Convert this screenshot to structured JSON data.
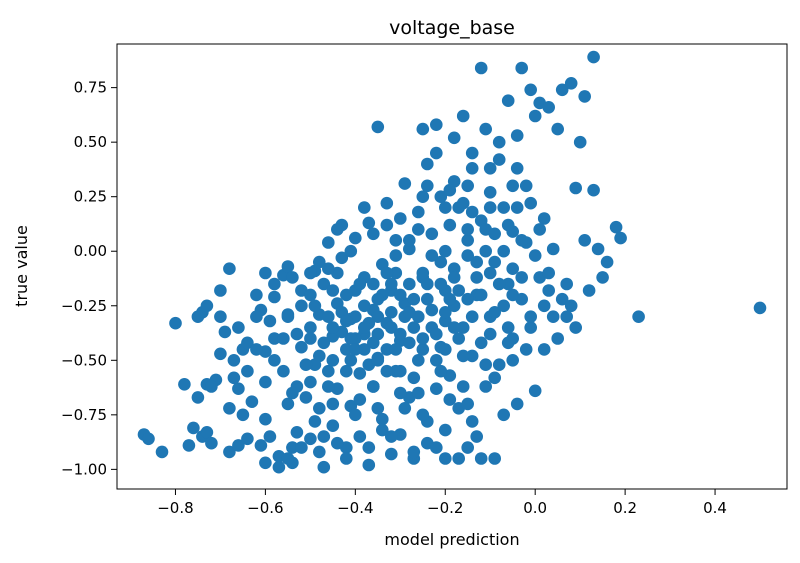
{
  "chart_data": {
    "type": "scatter",
    "title": "voltage_base",
    "xlabel": "model prediction",
    "ylabel": "true value",
    "xlim": [
      -0.93,
      0.56
    ],
    "ylim": [
      -1.09,
      0.95
    ],
    "xticks": [
      -0.8,
      -0.6,
      -0.4,
      -0.2,
      0.0,
      0.2,
      0.4
    ],
    "xtick_labels": [
      "−0.8",
      "−0.6",
      "−0.4",
      "−0.2",
      "0.0",
      "0.2",
      "0.4"
    ],
    "yticks": [
      -1.0,
      -0.75,
      -0.5,
      -0.25,
      0.0,
      0.25,
      0.5,
      0.75
    ],
    "ytick_labels": [
      "−1.00",
      "−0.75",
      "−0.50",
      "−0.25",
      "0.00",
      "0.25",
      "0.50",
      "0.75"
    ],
    "grid": false,
    "color": "#1f77b4",
    "points": [
      [
        -0.87,
        -0.84
      ],
      [
        -0.86,
        -0.86
      ],
      [
        -0.83,
        -0.92
      ],
      [
        -0.8,
        -0.33
      ],
      [
        -0.78,
        -0.61
      ],
      [
        -0.77,
        -0.89
      ],
      [
        -0.76,
        -0.81
      ],
      [
        -0.75,
        -0.67
      ],
      [
        -0.74,
        -0.85
      ],
      [
        -0.73,
        -0.83
      ],
      [
        -0.73,
        -0.61
      ],
      [
        -0.72,
        -0.88
      ],
      [
        -0.74,
        -0.28
      ],
      [
        -0.73,
        -0.25
      ],
      [
        -0.71,
        -0.59
      ],
      [
        -0.7,
        -0.18
      ],
      [
        -0.7,
        -0.3
      ],
      [
        -0.69,
        -0.37
      ],
      [
        -0.68,
        -0.92
      ],
      [
        -0.68,
        -0.08
      ],
      [
        -0.67,
        -0.58
      ],
      [
        -0.67,
        -0.5
      ],
      [
        -0.66,
        -0.63
      ],
      [
        -0.66,
        -0.89
      ],
      [
        -0.65,
        -0.45
      ],
      [
        -0.64,
        -0.86
      ],
      [
        -0.64,
        -0.42
      ],
      [
        -0.63,
        -0.69
      ],
      [
        -0.62,
        -0.2
      ],
      [
        -0.61,
        -0.27
      ],
      [
        -0.61,
        -0.89
      ],
      [
        -0.6,
        -0.77
      ],
      [
        -0.6,
        -0.46
      ],
      [
        -0.59,
        -0.32
      ],
      [
        -0.58,
        -0.21
      ],
      [
        -0.58,
        -0.4
      ],
      [
        -0.57,
        -0.94
      ],
      [
        -0.57,
        -0.99
      ],
      [
        -0.56,
        -0.55
      ],
      [
        -0.56,
        -0.11
      ],
      [
        -0.55,
        -0.07
      ],
      [
        -0.55,
        -0.29
      ],
      [
        -0.54,
        -0.9
      ],
      [
        -0.54,
        -0.97
      ],
      [
        -0.53,
        -0.83
      ],
      [
        -0.53,
        -0.62
      ],
      [
        -0.52,
        -0.44
      ],
      [
        -0.52,
        -0.18
      ],
      [
        -0.51,
        -0.67
      ],
      [
        -0.5,
        -0.35
      ],
      [
        -0.5,
        -0.86
      ],
      [
        -0.49,
        -0.09
      ],
      [
        -0.49,
        -0.52
      ],
      [
        -0.48,
        -0.72
      ],
      [
        -0.48,
        -0.29
      ],
      [
        -0.47,
        -0.99
      ],
      [
        -0.47,
        -0.15
      ],
      [
        -0.46,
        0.04
      ],
      [
        -0.46,
        -0.55
      ],
      [
        -0.45,
        -0.39
      ],
      [
        -0.45,
        -0.8
      ],
      [
        -0.44,
        -0.24
      ],
      [
        -0.44,
        -0.63
      ],
      [
        -0.43,
        -0.03
      ],
      [
        -0.43,
        0.12
      ],
      [
        -0.42,
        -0.45
      ],
      [
        -0.42,
        -0.9
      ],
      [
        -0.41,
        -0.31
      ],
      [
        -0.41,
        -0.71
      ],
      [
        -0.4,
        -0.18
      ],
      [
        -0.4,
        0.06
      ],
      [
        -0.39,
        -0.56
      ],
      [
        -0.39,
        -0.85
      ],
      [
        -0.38,
        -0.38
      ],
      [
        -0.38,
        -0.12
      ],
      [
        -0.37,
        -0.98
      ],
      [
        -0.37,
        0.13
      ],
      [
        -0.36,
        -0.62
      ],
      [
        -0.36,
        -0.27
      ],
      [
        -0.35,
        0.57
      ],
      [
        -0.35,
        -0.49
      ],
      [
        -0.34,
        -0.06
      ],
      [
        -0.34,
        -0.77
      ],
      [
        -0.33,
        0.22
      ],
      [
        -0.33,
        -0.33
      ],
      [
        -0.32,
        -0.93
      ],
      [
        -0.32,
        -0.18
      ],
      [
        -0.31,
        -0.55
      ],
      [
        -0.31,
        0.05
      ],
      [
        -0.3,
        -0.41
      ],
      [
        -0.3,
        -0.84
      ],
      [
        -0.29,
        0.31
      ],
      [
        -0.29,
        -0.24
      ],
      [
        -0.28,
        -0.67
      ],
      [
        -0.28,
        0.01
      ],
      [
        -0.27,
        -0.95
      ],
      [
        -0.27,
        -0.35
      ],
      [
        -0.26,
        0.18
      ],
      [
        -0.26,
        -0.5
      ],
      [
        -0.25,
        0.56
      ],
      [
        -0.25,
        -0.12
      ],
      [
        -0.24,
        -0.78
      ],
      [
        -0.24,
        0.4
      ],
      [
        -0.23,
        -0.27
      ],
      [
        -0.23,
        0.08
      ],
      [
        -0.22,
        -0.63
      ],
      [
        -0.22,
        0.58
      ],
      [
        -0.21,
        -0.44
      ],
      [
        -0.21,
        0.25
      ],
      [
        -0.2,
        -0.95
      ],
      [
        -0.2,
        -0.18
      ],
      [
        -0.19,
        0.12
      ],
      [
        -0.19,
        -0.57
      ],
      [
        -0.18,
        0.32
      ],
      [
        -0.18,
        -0.08
      ],
      [
        -0.17,
        -0.72
      ],
      [
        -0.17,
        0.2
      ],
      [
        -0.16,
        -0.35
      ],
      [
        -0.16,
        0.62
      ],
      [
        -0.15,
        -0.9
      ],
      [
        -0.15,
        0.05
      ],
      [
        -0.14,
        -0.48
      ],
      [
        -0.14,
        0.38
      ],
      [
        -0.13,
        -0.2
      ],
      [
        -0.13,
        -0.85
      ],
      [
        -0.12,
        0.84
      ],
      [
        -0.12,
        0.14
      ],
      [
        -0.11,
        -0.62
      ],
      [
        -0.11,
        0.56
      ],
      [
        -0.1,
        -0.3
      ],
      [
        -0.1,
        0.27
      ],
      [
        -0.09,
        -0.95
      ],
      [
        -0.09,
        -0.05
      ],
      [
        -0.08,
        0.5
      ],
      [
        -0.08,
        -0.52
      ],
      [
        -0.07,
        0.2
      ],
      [
        -0.07,
        -0.75
      ],
      [
        -0.06,
        0.69
      ],
      [
        -0.06,
        -0.15
      ],
      [
        -0.05,
        0.09
      ],
      [
        -0.05,
        -0.4
      ],
      [
        -0.04,
        0.53
      ],
      [
        -0.04,
        -0.7
      ],
      [
        -0.03,
        0.84
      ],
      [
        -0.03,
        -0.22
      ],
      [
        -0.02,
        0.3
      ],
      [
        -0.02,
        0.04
      ],
      [
        -0.01,
        0.74
      ],
      [
        -0.01,
        -0.35
      ],
      [
        0.0,
        0.62
      ],
      [
        0.0,
        -0.64
      ],
      [
        0.01,
        0.68
      ],
      [
        0.01,
        -0.12
      ],
      [
        0.02,
        0.15
      ],
      [
        0.02,
        -0.45
      ],
      [
        0.03,
        0.66
      ],
      [
        0.03,
        -0.18
      ],
      [
        0.04,
        0.01
      ],
      [
        0.05,
        0.56
      ],
      [
        0.05,
        -0.4
      ],
      [
        0.06,
        0.74
      ],
      [
        0.07,
        -0.3
      ],
      [
        0.08,
        0.77
      ],
      [
        0.09,
        0.29
      ],
      [
        0.09,
        -0.35
      ],
      [
        0.1,
        0.5
      ],
      [
        0.11,
        0.71
      ],
      [
        0.11,
        0.05
      ],
      [
        0.12,
        -0.18
      ],
      [
        0.13,
        0.89
      ],
      [
        0.13,
        0.28
      ],
      [
        0.14,
        0.01
      ],
      [
        0.15,
        -0.12
      ],
      [
        0.16,
        -0.05
      ],
      [
        0.18,
        0.11
      ],
      [
        0.19,
        0.06
      ],
      [
        0.23,
        -0.3
      ],
      [
        0.5,
        -0.26
      ],
      [
        -0.6,
        -0.6
      ],
      [
        -0.55,
        -0.7
      ],
      [
        -0.5,
        -0.6
      ],
      [
        -0.45,
        -0.5
      ],
      [
        -0.4,
        -0.4
      ],
      [
        -0.35,
        -0.3
      ],
      [
        -0.3,
        -0.2
      ],
      [
        -0.25,
        -0.1
      ],
      [
        -0.2,
        0.0
      ],
      [
        -0.15,
        0.1
      ],
      [
        -0.1,
        0.2
      ],
      [
        -0.05,
        0.3
      ],
      [
        -0.48,
        -0.48
      ],
      [
        -0.43,
        -0.37
      ],
      [
        -0.38,
        -0.25
      ],
      [
        -0.33,
        -0.45
      ],
      [
        -0.28,
        -0.15
      ],
      [
        -0.23,
        -0.35
      ],
      [
        -0.18,
        -0.25
      ],
      [
        -0.13,
        -0.05
      ],
      [
        -0.08,
        -0.15
      ],
      [
        -0.03,
        0.05
      ],
      [
        0.02,
        -0.25
      ],
      [
        0.07,
        -0.15
      ],
      [
        -0.62,
        -0.3
      ],
      [
        -0.58,
        -0.5
      ],
      [
        -0.52,
        -0.25
      ],
      [
        -0.47,
        -0.42
      ],
      [
        -0.42,
        -0.2
      ],
      [
        -0.37,
        -0.52
      ],
      [
        -0.32,
        -0.35
      ],
      [
        -0.27,
        -0.58
      ],
      [
        -0.22,
        -0.38
      ],
      [
        -0.17,
        -0.18
      ],
      [
        -0.12,
        -0.42
      ],
      [
        -0.07,
        -0.25
      ],
      [
        -0.02,
        -0.45
      ],
      [
        -0.65,
        -0.75
      ],
      [
        -0.59,
        -0.85
      ],
      [
        -0.54,
        -0.65
      ],
      [
        -0.49,
        -0.78
      ],
      [
        -0.44,
        -0.88
      ],
      [
        -0.39,
        -0.68
      ],
      [
        -0.34,
        -0.82
      ],
      [
        -0.29,
        -0.72
      ],
      [
        -0.24,
        -0.88
      ],
      [
        -0.19,
        -0.68
      ],
      [
        -0.14,
        -0.78
      ],
      [
        -0.09,
        -0.58
      ],
      [
        -0.41,
        0.0
      ],
      [
        -0.36,
        0.08
      ],
      [
        -0.31,
        -0.1
      ],
      [
        -0.26,
        0.1
      ],
      [
        -0.21,
        -0.05
      ],
      [
        -0.16,
        0.22
      ],
      [
        -0.11,
        0.0
      ],
      [
        -0.06,
        0.12
      ],
      [
        -0.01,
        0.22
      ],
      [
        -0.44,
        -0.1
      ],
      [
        -0.4,
        -0.3
      ],
      [
        -0.36,
        -0.15
      ],
      [
        -0.32,
        -0.28
      ],
      [
        -0.28,
        -0.42
      ],
      [
        -0.24,
        -0.22
      ],
      [
        -0.2,
        -0.32
      ],
      [
        -0.16,
        -0.48
      ],
      [
        -0.12,
        -0.2
      ],
      [
        -0.5,
        -0.2
      ],
      [
        -0.46,
        -0.3
      ],
      [
        -0.42,
        -0.55
      ],
      [
        -0.38,
        -0.45
      ],
      [
        -0.34,
        -0.2
      ],
      [
        -0.3,
        -0.55
      ],
      [
        -0.26,
        -0.3
      ],
      [
        -0.22,
        -0.5
      ],
      [
        -0.18,
        -0.12
      ],
      [
        -0.14,
        -0.3
      ],
      [
        -0.1,
        -0.1
      ],
      [
        -0.06,
        -0.35
      ],
      [
        -0.53,
        -0.38
      ],
      [
        -0.49,
        -0.25
      ],
      [
        -0.45,
        -0.18
      ],
      [
        -0.41,
        -0.4
      ],
      [
        -0.37,
        -0.33
      ],
      [
        -0.33,
        -0.1
      ],
      [
        -0.29,
        -0.3
      ],
      [
        -0.25,
        -0.45
      ],
      [
        -0.21,
        -0.15
      ],
      [
        -0.17,
        -0.4
      ],
      [
        -0.13,
        -0.12
      ],
      [
        -0.09,
        -0.28
      ],
      [
        -0.05,
        -0.5
      ],
      [
        -0.01,
        -0.3
      ],
      [
        0.03,
        -0.1
      ],
      [
        -0.56,
        -0.4
      ],
      [
        -0.51,
        -0.52
      ],
      [
        -0.46,
        -0.62
      ],
      [
        -0.41,
        -0.5
      ],
      [
        -0.36,
        -0.62
      ],
      [
        -0.31,
        -0.45
      ],
      [
        -0.26,
        -0.65
      ],
      [
        -0.21,
        -0.55
      ],
      [
        -0.16,
        -0.62
      ],
      [
        -0.11,
        -0.52
      ],
      [
        -0.06,
        -0.42
      ],
      [
        -0.48,
        -0.05
      ],
      [
        -0.43,
        -0.28
      ],
      [
        -0.39,
        -0.15
      ],
      [
        -0.35,
        -0.38
      ],
      [
        -0.31,
        -0.02
      ],
      [
        -0.27,
        -0.22
      ],
      [
        -0.23,
        -0.02
      ],
      [
        -0.19,
        -0.22
      ],
      [
        -0.15,
        -0.02
      ],
      [
        -0.11,
        0.1
      ],
      [
        -0.07,
        0.0
      ],
      [
        -0.03,
        -0.12
      ],
      [
        -0.3,
        0.15
      ],
      [
        -0.25,
        0.25
      ],
      [
        -0.2,
        0.2
      ],
      [
        -0.15,
        0.3
      ],
      [
        -0.1,
        0.38
      ],
      [
        -0.22,
        0.45
      ],
      [
        -0.18,
        0.52
      ],
      [
        -0.14,
        0.45
      ],
      [
        -0.08,
        0.42
      ],
      [
        -0.04,
        0.38
      ],
      [
        -0.45,
        -0.7
      ],
      [
        -0.4,
        -0.75
      ],
      [
        -0.35,
        -0.72
      ],
      [
        -0.3,
        -0.65
      ],
      [
        -0.25,
        -0.75
      ],
      [
        -0.2,
        -0.82
      ],
      [
        -0.15,
        -0.7
      ],
      [
        -0.52,
        -0.9
      ],
      [
        -0.47,
        -0.85
      ],
      [
        -0.42,
        -0.95
      ],
      [
        -0.37,
        -0.9
      ],
      [
        -0.32,
        -0.85
      ],
      [
        -0.27,
        -0.92
      ],
      [
        -0.22,
        -0.9
      ],
      [
        -0.17,
        -0.95
      ],
      [
        -0.12,
        -0.95
      ],
      [
        -0.58,
        -0.15
      ],
      [
        -0.6,
        -0.1
      ],
      [
        -0.54,
        -0.12
      ],
      [
        -0.5,
        -0.1
      ],
      [
        -0.46,
        -0.08
      ],
      [
        -0.66,
        -0.35
      ],
      [
        -0.62,
        -0.45
      ],
      [
        -0.64,
        -0.55
      ],
      [
        -0.7,
        -0.47
      ],
      [
        -0.68,
        -0.72
      ],
      [
        -0.72,
        -0.62
      ],
      [
        -0.75,
        -0.3
      ],
      [
        -0.6,
        -0.97
      ],
      [
        -0.55,
        -0.95
      ],
      [
        -0.48,
        -0.92
      ],
      [
        -0.05,
        -0.08
      ],
      [
        0.0,
        -0.02
      ],
      [
        0.04,
        -0.3
      ],
      [
        0.06,
        -0.22
      ],
      [
        0.08,
        -0.25
      ],
      [
        -0.44,
        0.1
      ],
      [
        -0.38,
        0.2
      ],
      [
        -0.33,
        0.12
      ],
      [
        -0.28,
        0.05
      ],
      [
        -0.24,
        0.3
      ],
      [
        -0.19,
        0.28
      ],
      [
        -0.14,
        0.18
      ],
      [
        -0.09,
        0.08
      ],
      [
        -0.04,
        0.2
      ],
      [
        0.01,
        0.1
      ],
      [
        -0.55,
        -0.3
      ],
      [
        -0.5,
        -0.4
      ],
      [
        -0.45,
        -0.35
      ],
      [
        -0.4,
        -0.45
      ],
      [
        -0.35,
        -0.5
      ],
      [
        -0.3,
        -0.38
      ],
      [
        -0.25,
        -0.4
      ],
      [
        -0.2,
        -0.28
      ],
      [
        -0.15,
        -0.22
      ],
      [
        -0.1,
        -0.38
      ],
      [
        -0.05,
        -0.2
      ],
      [
        -0.35,
        -0.22
      ],
      [
        -0.32,
        -0.15
      ],
      [
        -0.28,
        -0.28
      ],
      [
        -0.24,
        -0.15
      ],
      [
        -0.2,
        -0.45
      ],
      [
        -0.18,
        -0.35
      ],
      [
        -0.42,
        -0.32
      ],
      [
        -0.38,
        -0.35
      ],
      [
        -0.36,
        -0.42
      ],
      [
        -0.33,
        -0.55
      ]
    ]
  }
}
